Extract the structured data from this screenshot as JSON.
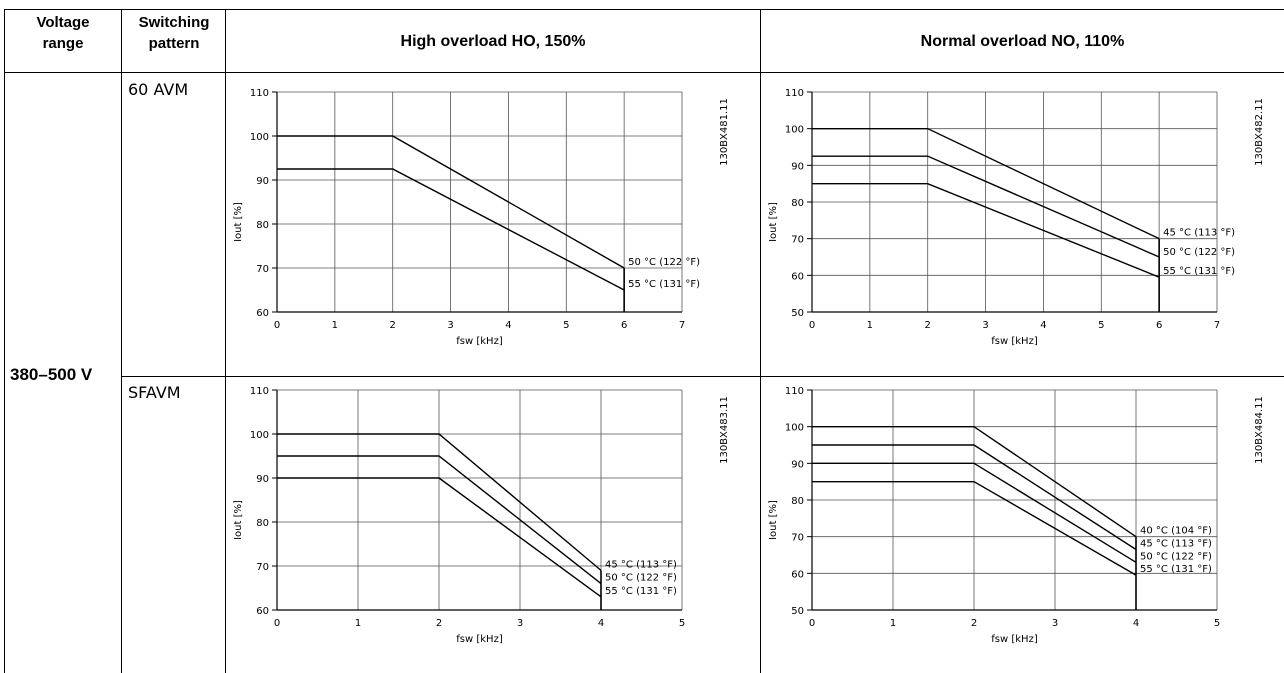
{
  "header": {
    "voltage_range": "Voltage range",
    "switching_pattern": "Switching pattern",
    "high_overload": "High overload HO, 150%",
    "normal_overload": "Normal overload NO, 110%"
  },
  "rows": {
    "voltage": "380–500 V",
    "pattern_1": "60 AVM",
    "pattern_2": "SFAVM"
  },
  "chart_data": [
    {
      "type": "line",
      "code": "130BX481.11",
      "xlabel": "fsw [kHz]",
      "ylabel": "Iout [%]",
      "xlim": [
        0,
        7
      ],
      "ylim": [
        60,
        110
      ],
      "xticks": [
        0,
        1,
        2,
        3,
        4,
        5,
        6,
        7
      ],
      "yticks": [
        60,
        70,
        80,
        90,
        100,
        110
      ],
      "series": [
        {
          "name": "50 °C (122 °F)",
          "x": [
            0,
            2,
            6
          ],
          "y": [
            100,
            100,
            70
          ]
        },
        {
          "name": "55 °C (131 °F)",
          "x": [
            0,
            2,
            6
          ],
          "y": [
            92.5,
            92.5,
            65
          ]
        }
      ]
    },
    {
      "type": "line",
      "code": "130BX482.11",
      "xlabel": "fsw [kHz]",
      "ylabel": "Iout [%]",
      "xlim": [
        0,
        7
      ],
      "ylim": [
        50,
        110
      ],
      "xticks": [
        0,
        1,
        2,
        3,
        4,
        5,
        6,
        7
      ],
      "yticks": [
        50,
        60,
        70,
        80,
        90,
        100,
        110
      ],
      "series": [
        {
          "name": "45 °C (113 °F)",
          "x": [
            0,
            2,
            6
          ],
          "y": [
            100,
            100,
            70
          ]
        },
        {
          "name": "50 °C (122 °F)",
          "x": [
            0,
            2,
            6
          ],
          "y": [
            92.5,
            92.5,
            65
          ]
        },
        {
          "name": "55 °C (131 °F)",
          "x": [
            0,
            2,
            6
          ],
          "y": [
            85,
            85,
            59.5
          ]
        }
      ]
    },
    {
      "type": "line",
      "code": "130BX483.11",
      "xlabel": "fsw [kHz]",
      "ylabel": "Iout [%]",
      "xlim": [
        0,
        5
      ],
      "ylim": [
        60,
        110
      ],
      "xticks": [
        0,
        1,
        2,
        3,
        4,
        5
      ],
      "yticks": [
        60,
        70,
        80,
        90,
        100,
        110
      ],
      "series": [
        {
          "name": "45 °C (113 °F)",
          "x": [
            0,
            2,
            4
          ],
          "y": [
            100,
            100,
            69
          ]
        },
        {
          "name": "50 °C (122 °F)",
          "x": [
            0,
            2,
            4
          ],
          "y": [
            95,
            95,
            66
          ]
        },
        {
          "name": "55 °C (131 °F)",
          "x": [
            0,
            2,
            4
          ],
          "y": [
            90,
            90,
            63
          ]
        }
      ]
    },
    {
      "type": "line",
      "code": "130BX484.11",
      "xlabel": "fsw [kHz]",
      "ylabel": "Iout [%]",
      "xlim": [
        0,
        5
      ],
      "ylim": [
        50,
        110
      ],
      "xticks": [
        0,
        1,
        2,
        3,
        4,
        5
      ],
      "yticks": [
        50,
        60,
        70,
        80,
        90,
        100,
        110
      ],
      "series": [
        {
          "name": "40 °C (104 °F)",
          "x": [
            0,
            2,
            4
          ],
          "y": [
            100,
            100,
            70
          ]
        },
        {
          "name": "45 °C (113 °F)",
          "x": [
            0,
            2,
            4
          ],
          "y": [
            95,
            95,
            66.5
          ]
        },
        {
          "name": "50 °C (122 °F)",
          "x": [
            0,
            2,
            4
          ],
          "y": [
            90,
            90,
            63
          ]
        },
        {
          "name": "55 °C (131 °F)",
          "x": [
            0,
            2,
            4
          ],
          "y": [
            85,
            85,
            59.5
          ]
        }
      ]
    }
  ]
}
